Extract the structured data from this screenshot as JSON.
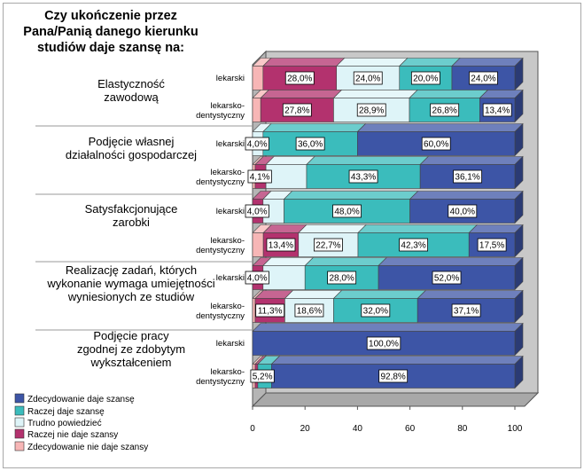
{
  "chart_data": {
    "type": "bar",
    "stacked": true,
    "orientation": "horizontal",
    "title": "Czy ukończenie przez Pana/Panią danego kierunku studiów daje szansę na:",
    "xlim": [
      0,
      100
    ],
    "xticks": [
      0,
      20,
      40,
      60,
      80,
      100
    ],
    "legend_position": "bottom-left",
    "groups": [
      {
        "label": "Elastyczność zawodową",
        "rows": [
          {
            "label": "lekarski",
            "values": [
              4.0,
              28.0,
              24.0,
              20.0,
              24.0
            ],
            "labels": [
              "",
              "28,0%",
              "24,0%",
              "20,0%",
              "24,0%"
            ]
          },
          {
            "label": "lekarsko-dentystyczny",
            "values": [
              3.1,
              27.8,
              28.9,
              26.8,
              13.4
            ],
            "labels": [
              "",
              "27,8%",
              "28,9%",
              "26,8%",
              "13,4%"
            ]
          }
        ]
      },
      {
        "label": "Podjęcie własnej działalności gospodarczej",
        "rows": [
          {
            "label": "lekarski",
            "values": [
              0,
              0,
              4.0,
              36.0,
              60.0
            ],
            "labels": [
              "",
              "",
              "4,0%",
              "36,0%",
              "60,0%"
            ]
          },
          {
            "label": "lekarsko-dentystyczny",
            "values": [
              1.0,
              4.1,
              15.5,
              43.3,
              36.1
            ],
            "labels": [
              "",
              "4,1%",
              "",
              "43,3%",
              "36,1%"
            ]
          }
        ]
      },
      {
        "label": "Satysfakcjonujące zarobki",
        "rows": [
          {
            "label": "lekarski",
            "values": [
              0,
              4.0,
              8.0,
              48.0,
              40.0
            ],
            "labels": [
              "",
              "4,0%",
              "",
              "48,0%",
              "40,0%"
            ]
          },
          {
            "label": "lekarsko-dentystyczny",
            "values": [
              4.1,
              13.4,
              22.7,
              42.3,
              17.5
            ],
            "labels": [
              "",
              "13,4%",
              "22,7%",
              "42,3%",
              "17,5%"
            ]
          }
        ]
      },
      {
        "label": "Realizację zadań, których wykonanie wymaga umiejętności wyniesionych ze studiów",
        "rows": [
          {
            "label": "lekarski",
            "values": [
              0,
              4.0,
              16.0,
              28.0,
              52.0
            ],
            "labels": [
              "",
              "4,0%",
              "",
              "28,0%",
              "52,0%"
            ]
          },
          {
            "label": "lekarsko-dentystyczny",
            "values": [
              1.0,
              11.3,
              18.6,
              32.0,
              37.1
            ],
            "labels": [
              "",
              "11,3%",
              "18,6%",
              "32,0%",
              "37,1%"
            ]
          }
        ]
      },
      {
        "label": "Podjęcie pracy zgodnej ze zdobytym wykształceniem",
        "rows": [
          {
            "label": "lekarski",
            "values": [
              0,
              0,
              0,
              0,
              100.0
            ],
            "labels": [
              "",
              "",
              "",
              "",
              "100,0%"
            ]
          },
          {
            "label": "lekarsko-dentystyczny",
            "values": [
              1.0,
              1.0,
              0,
              5.2,
              92.8
            ],
            "labels": [
              "",
              "",
              "",
              "5,2%",
              "92,8%"
            ]
          }
        ]
      }
    ],
    "series": [
      {
        "name": "Zdecydowanie nie daje szansy",
        "color": "#f7b6b6"
      },
      {
        "name": "Raczej nie daje szansy",
        "color": "#b3326e"
      },
      {
        "name": "Trudno powiedzieć",
        "color": "#def4f8"
      },
      {
        "name": "Raczej daje szansę",
        "color": "#3bbcbc"
      },
      {
        "name": "Zdecydowanie daje szansę",
        "color": "#3d55a6"
      }
    ],
    "legend_order": [
      4,
      3,
      2,
      1,
      0
    ]
  }
}
